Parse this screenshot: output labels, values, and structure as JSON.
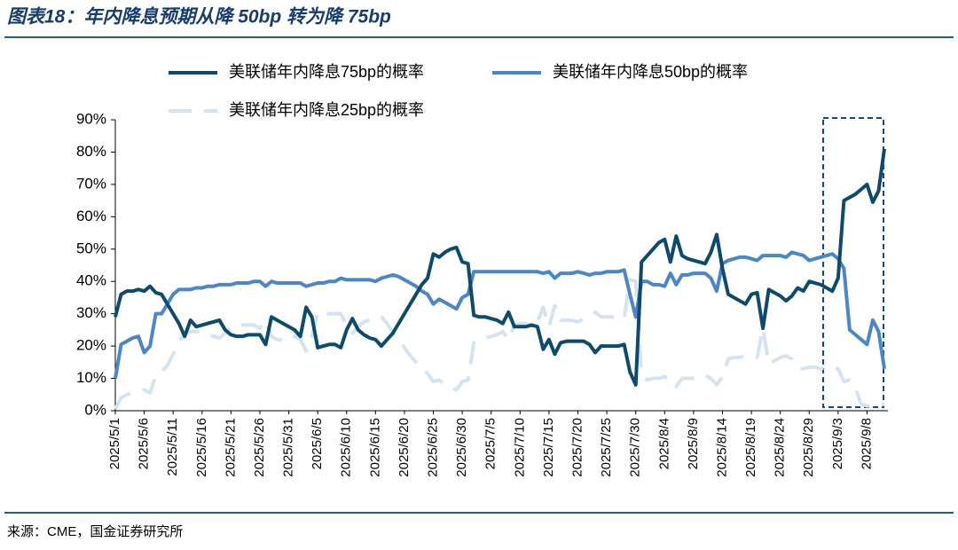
{
  "chart_data": {
    "type": "line",
    "title": "图表18：年内降息预期从降 50bp 转为降 75bp",
    "source": "来源：CME，国金证券研究所",
    "categories": [
      "2025/5/1",
      null,
      null,
      null,
      null,
      "2025/5/6",
      null,
      null,
      null,
      null,
      "2025/5/11",
      null,
      null,
      null,
      null,
      "2025/5/16",
      null,
      null,
      null,
      null,
      "2025/5/21",
      null,
      null,
      null,
      null,
      "2025/5/26",
      null,
      null,
      null,
      null,
      "2025/5/31",
      null,
      null,
      null,
      null,
      "2025/6/5",
      null,
      null,
      null,
      null,
      "2025/6/10",
      null,
      null,
      null,
      null,
      "2025/6/15",
      null,
      null,
      null,
      null,
      "2025/6/20",
      null,
      null,
      null,
      null,
      "2025/6/25",
      null,
      null,
      null,
      null,
      "2025/6/30",
      null,
      null,
      null,
      null,
      "2025/7/5",
      null,
      null,
      null,
      null,
      "2025/7/10",
      null,
      null,
      null,
      null,
      "2025/7/15",
      null,
      null,
      null,
      null,
      "2025/7/20",
      null,
      null,
      null,
      null,
      "2025/7/25",
      null,
      null,
      null,
      null,
      "2025/7/30",
      null,
      null,
      null,
      null,
      "2025/8/4",
      null,
      null,
      null,
      null,
      "2025/8/9",
      null,
      null,
      null,
      null,
      "2025/8/14",
      null,
      null,
      null,
      null,
      "2025/8/19",
      null,
      null,
      null,
      null,
      "2025/8/24",
      null,
      null,
      null,
      null,
      "2025/8/29",
      null,
      null,
      null,
      null,
      "2025/9/3",
      null,
      null,
      null,
      null,
      "2025/9/8",
      null,
      null,
      null
    ],
    "series": [
      {
        "name": "美联储年内降息75bp的概率",
        "color": "#0d4a6b",
        "dashed": false,
        "values": [
          29,
          36,
          37,
          37,
          37.5,
          37,
          38.5,
          36.5,
          36,
          33,
          30,
          27,
          23,
          28,
          26,
          26.5,
          27,
          27.5,
          28,
          25,
          23.5,
          23,
          23,
          23.5,
          23.5,
          23.5,
          20.5,
          29,
          28,
          27,
          26,
          25,
          23,
          32,
          29,
          19.5,
          20,
          20.5,
          20.5,
          19.5,
          25,
          28.5,
          25,
          23.5,
          22.5,
          22,
          20,
          22,
          24,
          27,
          30,
          33,
          36,
          39,
          41,
          48.5,
          47.5,
          49,
          50,
          50.5,
          46,
          45.5,
          29.5,
          29,
          29,
          28.5,
          28,
          27,
          30.5,
          26,
          26,
          26,
          26.5,
          26,
          19,
          22,
          17.5,
          21,
          21.5,
          21.5,
          21.5,
          21.5,
          20.5,
          18,
          20,
          20,
          20,
          20,
          20.5,
          12,
          8,
          46,
          48,
          50,
          52,
          53,
          46,
          54,
          48,
          47,
          46.5,
          46,
          45.5,
          49,
          54.5,
          44,
          36,
          35,
          34,
          33,
          36,
          36.5,
          25.5,
          37.5,
          36.5,
          35.5,
          34,
          35.5,
          38,
          37,
          40,
          39.5,
          39,
          38,
          37,
          41,
          65,
          66,
          67,
          68.5,
          70,
          64.5,
          68,
          81
        ]
      },
      {
        "name": "美联储年内降息50bp的概率",
        "color": "#4a86c8",
        "dashed": false,
        "values": [
          10,
          20.5,
          21.5,
          22.5,
          23,
          18,
          20,
          30,
          30,
          33,
          36,
          37.5,
          37.5,
          37.5,
          38,
          38,
          38.5,
          38.5,
          39,
          39,
          39,
          39.5,
          39.5,
          39.5,
          40,
          40,
          38.5,
          40,
          39.5,
          39.5,
          39.5,
          39.5,
          39.5,
          38.5,
          39,
          39.5,
          39.5,
          40,
          40,
          41,
          40.5,
          40.5,
          40.5,
          40.5,
          40.5,
          40,
          41,
          41.5,
          42,
          41.5,
          40.5,
          39.5,
          38.5,
          37,
          36,
          33,
          34.5,
          33.5,
          32.5,
          31.5,
          35,
          36,
          43,
          43,
          43,
          43,
          43,
          43,
          43,
          43,
          43,
          43,
          43,
          43,
          42.5,
          43,
          41,
          42.5,
          42.5,
          42.5,
          43,
          42.5,
          42,
          42.5,
          42.5,
          43,
          43,
          43,
          43.5,
          36,
          29,
          40,
          40,
          39,
          39,
          38.5,
          42.5,
          39,
          42,
          42,
          42.5,
          42.5,
          42.5,
          41,
          37,
          45.5,
          46.5,
          47,
          47.5,
          47.5,
          47,
          46.5,
          48,
          48,
          48,
          48,
          47.5,
          49,
          48.5,
          48,
          46.5,
          47,
          47.5,
          48,
          48.5,
          47,
          44,
          25,
          23.5,
          22,
          20.5,
          28,
          24.5,
          13
        ]
      },
      {
        "name": "美联储年内降息25bp的概率",
        "color": "#d3e3f2",
        "dashed": true,
        "values": [
          0.5,
          4,
          5,
          5.5,
          6,
          6.5,
          5.5,
          11,
          12,
          14,
          17.5,
          21,
          24,
          24.5,
          24.5,
          24.5,
          23.5,
          23,
          22.5,
          24,
          26,
          26.5,
          26.5,
          26.5,
          26.5,
          25.5,
          28,
          23,
          22,
          22,
          23.5,
          23,
          22,
          18.5,
          23,
          30.5,
          30,
          30,
          30,
          30,
          26.5,
          24,
          26,
          27.5,
          28,
          29,
          29,
          27,
          24,
          22,
          19.5,
          17,
          15,
          13,
          11.5,
          9,
          9.5,
          8,
          7,
          6.5,
          9,
          9.5,
          21,
          22,
          22.5,
          23,
          23.5,
          24.5,
          22,
          26.5,
          27,
          27,
          26,
          27.5,
          32,
          26,
          32.5,
          28,
          28,
          28,
          27.5,
          28.5,
          29,
          30.5,
          29,
          29,
          29,
          29,
          28.5,
          40.5,
          40,
          11,
          9.5,
          10,
          10,
          10.5,
          10,
          7.5,
          10,
          10,
          10,
          10.5,
          11,
          10,
          8,
          10.5,
          16,
          16.5,
          16.5,
          17,
          16.5,
          16.5,
          25.5,
          14.5,
          15.5,
          16.5,
          17,
          16,
          13.5,
          13,
          13.5,
          13.5,
          13,
          13.5,
          13.5,
          13,
          9,
          9.5,
          7,
          2,
          1.5,
          1.5,
          2,
          2
        ]
      }
    ],
    "ylim": [
      0,
      90
    ],
    "yticks": [
      {
        "value": 0,
        "label": "0%"
      },
      {
        "value": 10,
        "label": "10%"
      },
      {
        "value": 20,
        "label": "20%"
      },
      {
        "value": 30,
        "label": "30%"
      },
      {
        "value": 40,
        "label": "40%"
      },
      {
        "value": 50,
        "label": "50%"
      },
      {
        "value": 60,
        "label": "60%"
      },
      {
        "value": 70,
        "label": "70%"
      },
      {
        "value": 80,
        "label": "80%"
      },
      {
        "value": 90,
        "label": "90%"
      }
    ],
    "grid": false
  }
}
